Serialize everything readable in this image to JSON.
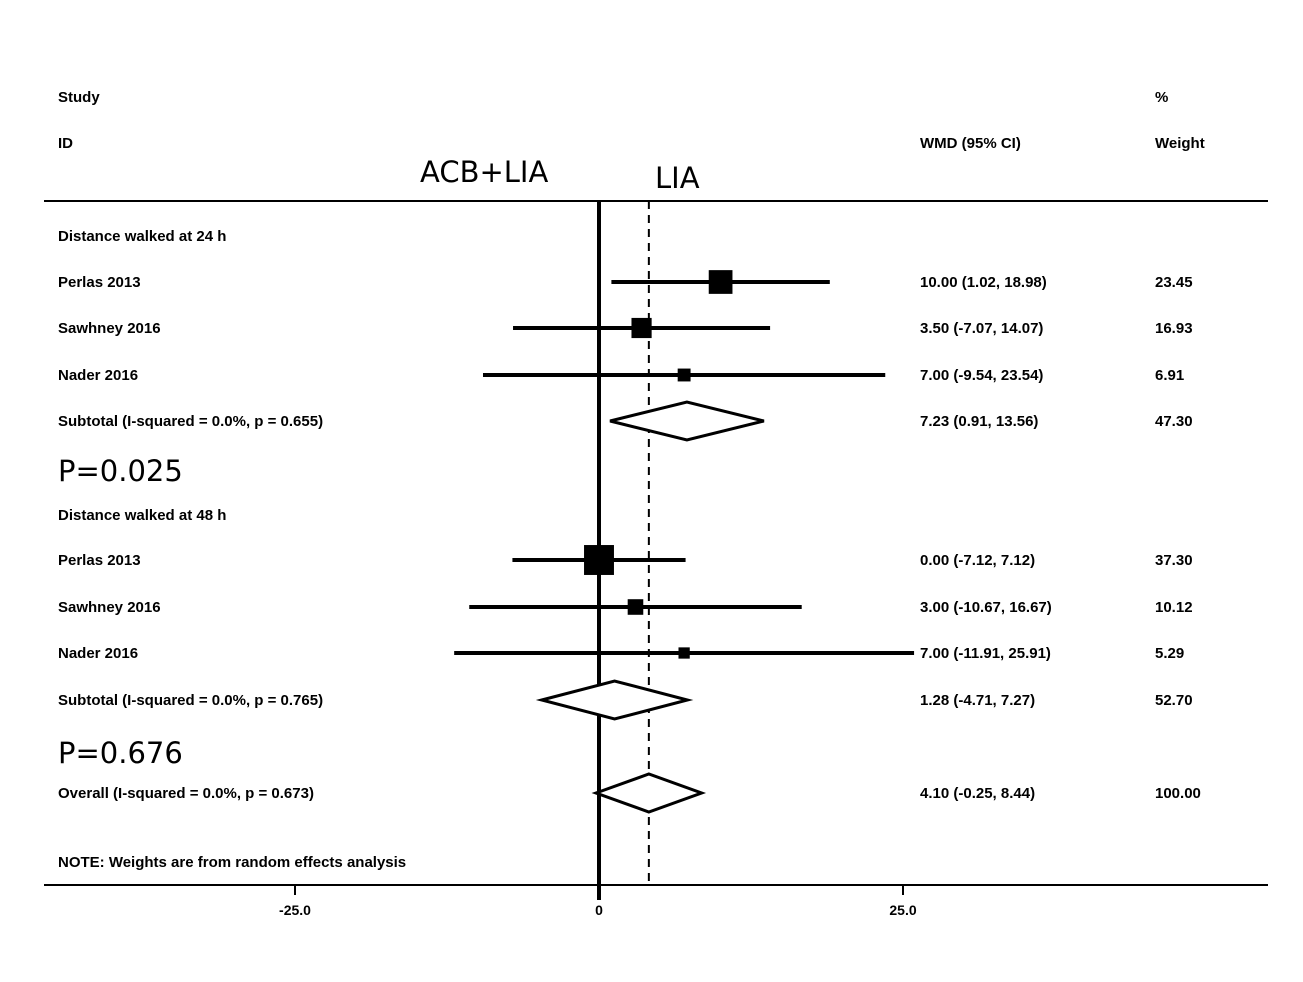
{
  "headers": {
    "study_line1": "Study",
    "study_line2": "ID",
    "effect": "WMD (95% CI)",
    "weight_line1": "%",
    "weight_line2": "Weight"
  },
  "annotations": {
    "left_label": "ACB+LIA",
    "right_label": "LIA",
    "p_group1": "P=0.025",
    "p_group2": "P=0.676",
    "note": "NOTE: Weights are from random effects analysis"
  },
  "chart_data": {
    "type": "forest",
    "xlim": [
      -25,
      25
    ],
    "xticks": [
      {
        "value": -25,
        "label": "-25.0"
      },
      {
        "value": 0,
        "label": "0"
      },
      {
        "value": 25,
        "label": "25.0"
      }
    ],
    "null_line": 0,
    "overall_line": 4.1,
    "rows": [
      {
        "kind": "group",
        "label": "Distance walked at 24 h"
      },
      {
        "kind": "study",
        "label": "Perlas 2013",
        "est": 10.0,
        "lo": 1.02,
        "hi": 18.98,
        "ci_text": "10.00 (1.02, 18.98)",
        "weight": 23.45,
        "weight_text": "23.45"
      },
      {
        "kind": "study",
        "label": "Sawhney 2016",
        "est": 3.5,
        "lo": -7.07,
        "hi": 14.07,
        "ci_text": "3.50 (-7.07, 14.07)",
        "weight": 16.93,
        "weight_text": "16.93"
      },
      {
        "kind": "study",
        "label": "Nader 2016",
        "est": 7.0,
        "lo": -9.54,
        "hi": 23.54,
        "ci_text": "7.00 (-9.54, 23.54)",
        "weight": 6.91,
        "weight_text": "6.91"
      },
      {
        "kind": "subtotal",
        "label": "Subtotal  (I-squared = 0.0%, p = 0.655)",
        "est": 7.23,
        "lo": 0.91,
        "hi": 13.56,
        "ci_text": "7.23 (0.91, 13.56)",
        "weight": 47.3,
        "weight_text": "47.30"
      },
      {
        "kind": "group",
        "label": "Distance walked at 48 h"
      },
      {
        "kind": "study",
        "label": "Perlas 2013",
        "est": 0.0,
        "lo": -7.12,
        "hi": 7.12,
        "ci_text": "0.00 (-7.12, 7.12)",
        "weight": 37.3,
        "weight_text": "37.30"
      },
      {
        "kind": "study",
        "label": "Sawhney 2016",
        "est": 3.0,
        "lo": -10.67,
        "hi": 16.67,
        "ci_text": "3.00 (-10.67, 16.67)",
        "weight": 10.12,
        "weight_text": "10.12"
      },
      {
        "kind": "study",
        "label": "Nader 2016",
        "est": 7.0,
        "lo": -11.91,
        "hi": 25.91,
        "ci_text": "7.00 (-11.91, 25.91)",
        "weight": 5.29,
        "weight_text": "5.29"
      },
      {
        "kind": "subtotal",
        "label": "Subtotal  (I-squared = 0.0%, p = 0.765)",
        "est": 1.28,
        "lo": -4.71,
        "hi": 7.27,
        "ci_text": "1.28 (-4.71, 7.27)",
        "weight": 52.7,
        "weight_text": "52.70"
      },
      {
        "kind": "overall",
        "label": "Overall  (I-squared = 0.0%, p = 0.673)",
        "est": 4.1,
        "lo": -0.25,
        "hi": 8.44,
        "ci_text": "4.10 (-0.25, 8.44)",
        "weight": 100.0,
        "weight_text": "100.00"
      }
    ]
  }
}
